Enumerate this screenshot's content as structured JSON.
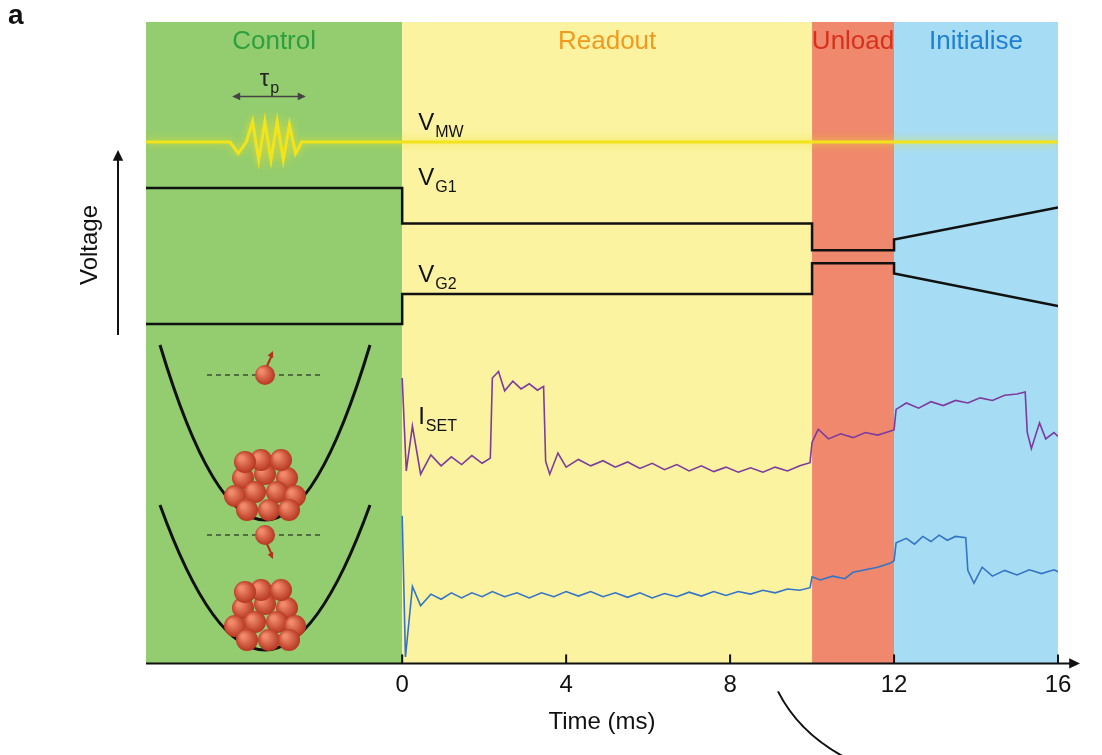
{
  "chart_data": {
    "type": "line",
    "panel": "a",
    "x_label": "Time (ms)",
    "y_label": "Voltage",
    "xlim": [
      -6.25,
      16
    ],
    "xticks": [
      0,
      4,
      8,
      12,
      16
    ],
    "ylim": [
      0,
      100
    ],
    "tick_labels": "x",
    "grid": false,
    "phases": [
      {
        "name": "Control",
        "start": -6.25,
        "end": 0,
        "color": "#93cd6f",
        "text_color": "#2e9e3e"
      },
      {
        "name": "Readout",
        "start": 0,
        "end": 10,
        "color": "#fbf3a0",
        "text_color": "#f29a1f"
      },
      {
        "name": "Unload",
        "start": 10,
        "end": 12,
        "color": "#ef886c",
        "text_color": "#d9301c"
      },
      {
        "name": "Initialise",
        "start": 12,
        "end": 16,
        "color": "#a6dcf4",
        "text_color": "#1f7fd0"
      }
    ],
    "annotations": [
      {
        "text": "τ",
        "subscript": "p",
        "x": [
          -4.15,
          -2.35
        ],
        "y": 88.4
      }
    ],
    "series": [
      {
        "name": "V",
        "subscript": "MW",
        "color": "#f2e41a",
        "x": [
          -6.25,
          -4.2,
          -4.0,
          -3.8,
          -3.65,
          -3.5,
          -3.35,
          -3.2,
          -3.05,
          -2.9,
          -2.75,
          -2.6,
          -2.45,
          16
        ],
        "values": [
          81.3,
          81.3,
          79.5,
          81.3,
          84.5,
          78.5,
          84.5,
          78.5,
          84.5,
          78.5,
          84.0,
          79.5,
          81.3,
          81.3
        ]
      },
      {
        "name": "V",
        "subscript": "G1",
        "color": "#111111",
        "x": [
          -6.25,
          0,
          0,
          10,
          10,
          12,
          12,
          16
        ],
        "values": [
          74.1,
          74.1,
          68.6,
          68.6,
          64.4,
          64.4,
          66.1,
          71.1
        ]
      },
      {
        "name": "V",
        "subscript": "G2",
        "color": "#111111",
        "x": [
          -6.25,
          0,
          0,
          10,
          10,
          12,
          12,
          16
        ],
        "values": [
          52.9,
          52.9,
          57.6,
          57.6,
          62.4,
          62.4,
          60.8,
          55.7
        ]
      },
      {
        "name": "I",
        "subscript": "SET",
        "color": "#7d3b9e",
        "x": [
          0,
          0.1,
          0.25,
          0.45,
          0.7,
          0.95,
          1.2,
          1.45,
          1.7,
          1.95,
          2.15,
          2.2,
          2.35,
          2.5,
          2.7,
          2.9,
          3.1,
          3.3,
          3.45,
          3.5,
          3.6,
          3.8,
          4.0,
          4.3,
          4.6,
          4.9,
          5.2,
          5.5,
          5.8,
          6.1,
          6.4,
          6.7,
          7.0,
          7.3,
          7.6,
          7.9,
          8.2,
          8.5,
          8.8,
          9.1,
          9.4,
          9.7,
          9.95,
          10,
          10.15,
          10.4,
          10.7,
          11,
          11.3,
          11.6,
          11.9,
          12,
          12.05,
          12.3,
          12.6,
          12.9,
          13.2,
          13.5,
          13.8,
          14.1,
          14.4,
          14.7,
          15,
          15.2,
          15.25,
          15.35,
          15.55,
          15.7,
          15.9,
          16
        ],
        "values": [
          44.5,
          30,
          37,
          29.5,
          32.5,
          30.8,
          32.2,
          31,
          32.4,
          31.2,
          32,
          44.5,
          45.5,
          42.5,
          44,
          42.8,
          43.6,
          42.6,
          43.2,
          31.5,
          29.5,
          32.8,
          30.6,
          31.8,
          30.8,
          31.6,
          30.6,
          31.4,
          30.4,
          31.2,
          30.2,
          31,
          30,
          30.8,
          29.9,
          30.6,
          29.8,
          30.5,
          29.8,
          30.6,
          30,
          30.8,
          31.3,
          34.5,
          36.5,
          35,
          35.8,
          35.2,
          36,
          35.6,
          36.2,
          36.4,
          39.6,
          40.6,
          39.8,
          40.8,
          40.2,
          41,
          40.6,
          41.4,
          41,
          41.8,
          42,
          42.3,
          36,
          33.5,
          37.5,
          35,
          36,
          35.4
        ]
      },
      {
        "color": "#3474c6",
        "x": [
          0,
          0.08,
          0.25,
          0.45,
          0.7,
          0.95,
          1.2,
          1.45,
          1.7,
          1.95,
          2.2,
          2.5,
          2.8,
          3.1,
          3.4,
          3.7,
          4.0,
          4.3,
          4.6,
          4.9,
          5.2,
          5.5,
          5.8,
          6.1,
          6.4,
          6.7,
          7.0,
          7.3,
          7.6,
          7.9,
          8.2,
          8.5,
          8.8,
          9.1,
          9.4,
          9.7,
          9.95,
          10,
          10.2,
          10.5,
          10.8,
          11,
          11.3,
          11.6,
          11.9,
          12,
          12.05,
          12.3,
          12.5,
          12.7,
          12.9,
          13.1,
          13.3,
          13.5,
          13.75,
          13.8,
          13.95,
          14.15,
          14.4,
          14.7,
          15,
          15.3,
          15.6,
          15.9,
          16
        ],
        "values": [
          23,
          1,
          12,
          9,
          10.8,
          10,
          11,
          10.2,
          11,
          10.4,
          11.2,
          10.4,
          11,
          10.2,
          11,
          10.4,
          11.2,
          10.5,
          11.2,
          10.4,
          11,
          10.3,
          11,
          10.2,
          10.9,
          10.4,
          11.1,
          10.5,
          11.2,
          10.6,
          11.2,
          10.8,
          11.4,
          11,
          11.6,
          11.4,
          11.8,
          13.5,
          13,
          13.6,
          13.2,
          14.2,
          14.6,
          15,
          15.6,
          16,
          18.8,
          19.5,
          18.6,
          19.8,
          19,
          20,
          19.2,
          19.8,
          19.6,
          14.5,
          12.5,
          15,
          13.6,
          14.5,
          13.8,
          14.6,
          14,
          14.6,
          14.3
        ]
      }
    ]
  }
}
